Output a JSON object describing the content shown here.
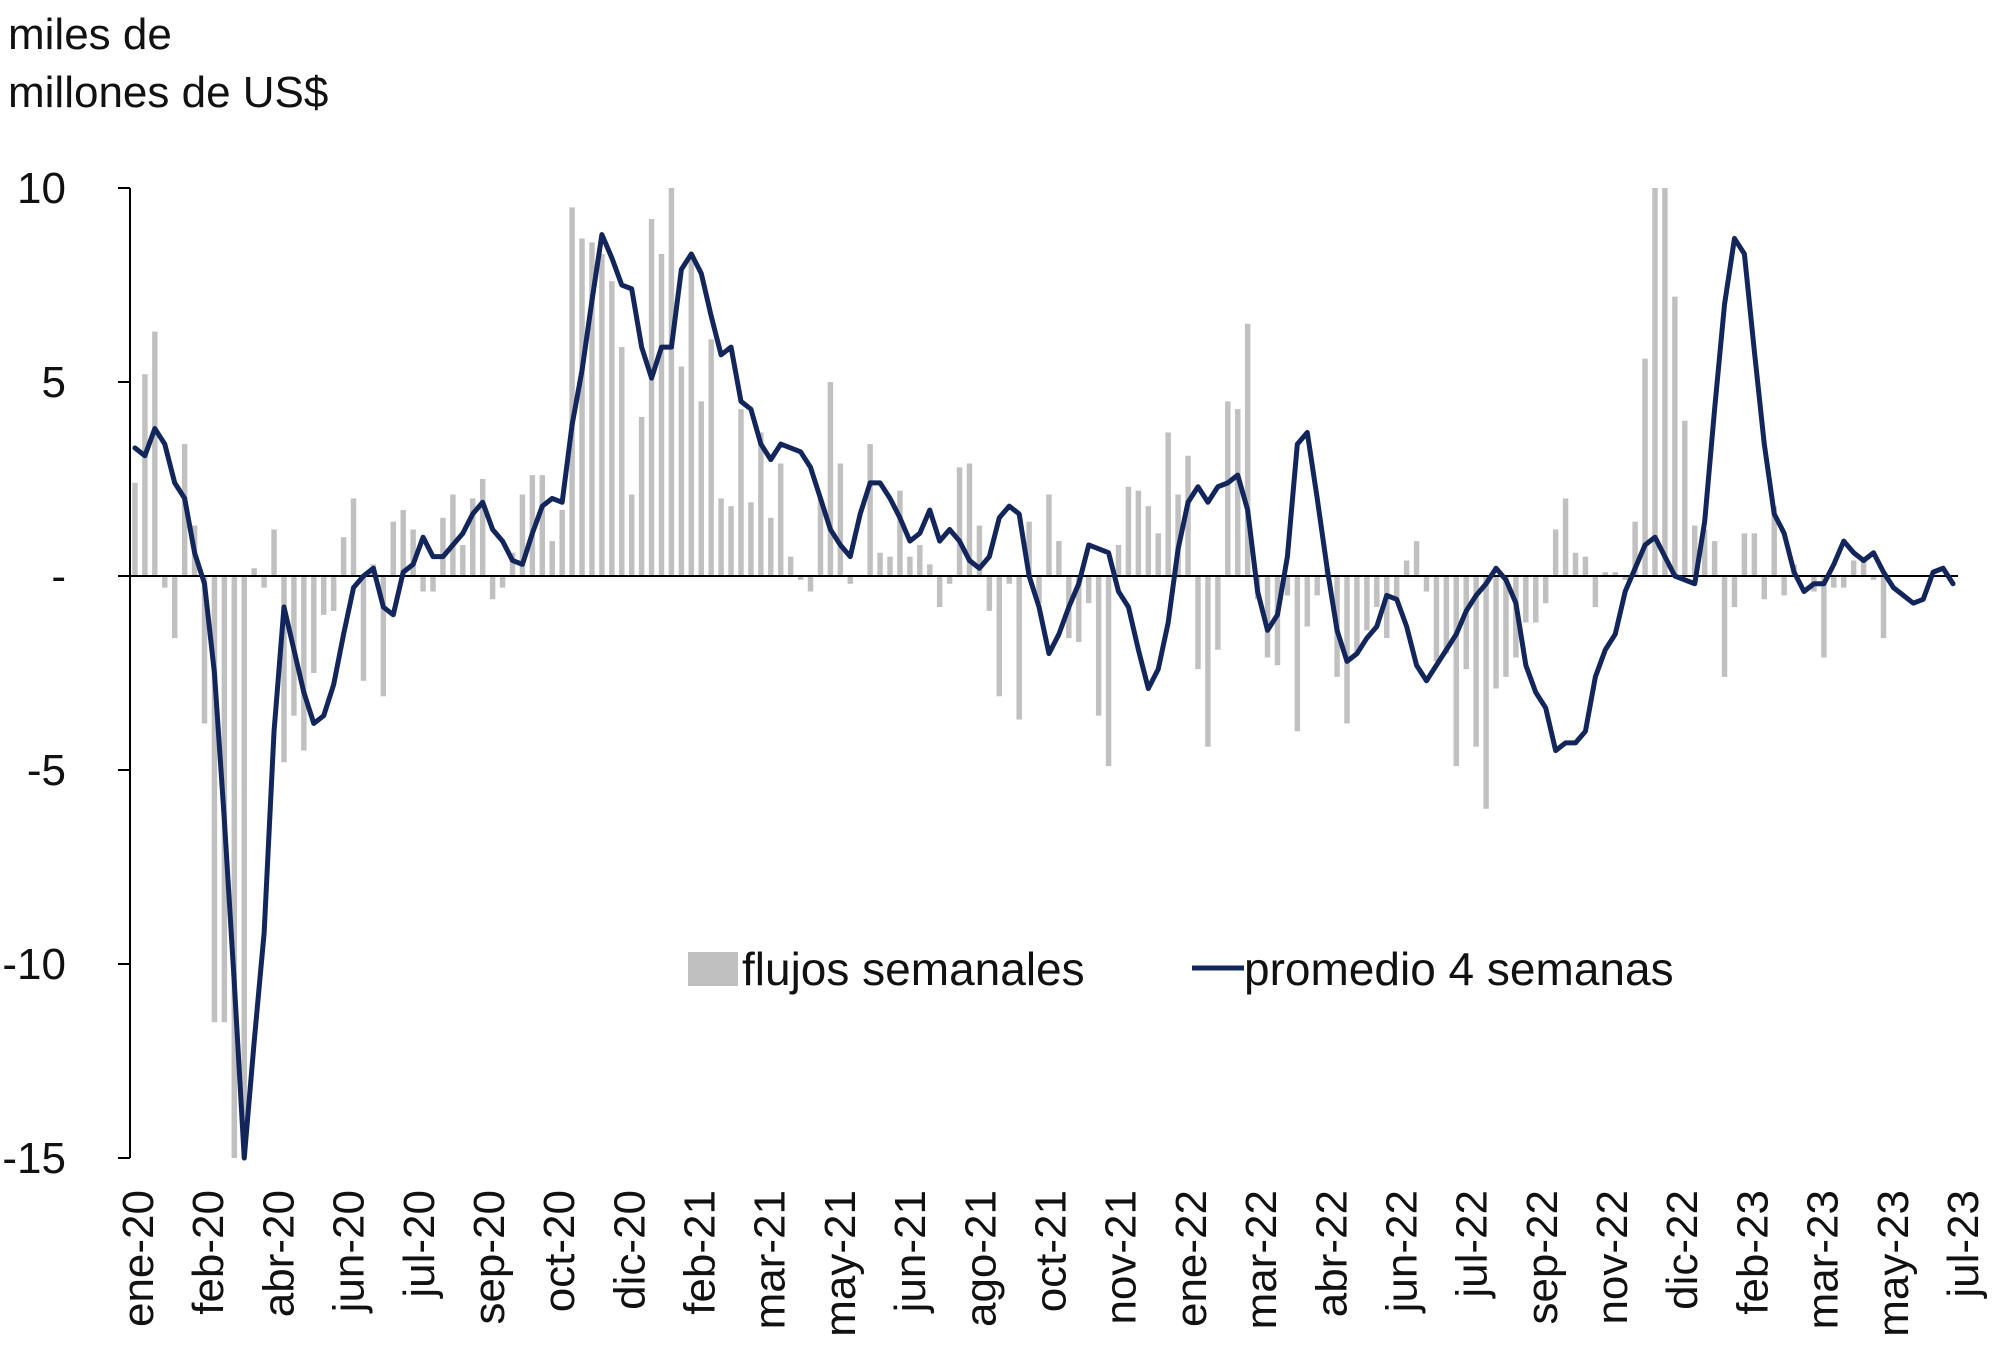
{
  "chart_data": {
    "type": "bar+line",
    "ylabel_line1": "miles de",
    "ylabel_line2": "millones de US$",
    "ylim": [
      -15,
      10
    ],
    "yticks": [
      10,
      5,
      0,
      -5,
      -10,
      -15
    ],
    "ytick_labels": [
      "10",
      "5",
      "-",
      "-5",
      "-10",
      "-15"
    ],
    "xtick_labels": [
      "ene-20",
      "feb-20",
      "abr-20",
      "jun-20",
      "jul-20",
      "sep-20",
      "oct-20",
      "dic-20",
      "feb-21",
      "mar-21",
      "may-21",
      "jun-21",
      "ago-21",
      "oct-21",
      "nov-21",
      "ene-22",
      "mar-22",
      "abr-22",
      "jun-22",
      "jul-22",
      "sep-22",
      "nov-22",
      "dic-22",
      "feb-23",
      "mar-23",
      "may-23",
      "jul-23"
    ],
    "legend_position": "center",
    "colors": {
      "bars": "#c0c0c0",
      "line": "#13265c",
      "axis": "#000000"
    },
    "series": [
      {
        "name": "flujos semanales",
        "type": "bar",
        "values": [
          2.4,
          5.2,
          6.3,
          -0.3,
          -1.6,
          3.4,
          1.3,
          -3.8,
          -11.5,
          -11.5,
          -15.0,
          -15.0,
          0.2,
          -0.3,
          1.2,
          -4.8,
          -3.6,
          -4.5,
          -2.5,
          -1.0,
          -0.9,
          1.0,
          2.0,
          -2.7,
          0.3,
          -3.1,
          1.4,
          1.7,
          1.2,
          -0.4,
          -0.4,
          1.5,
          2.1,
          0.8,
          2.0,
          2.5,
          -0.6,
          -0.3,
          0.6,
          2.1,
          2.6,
          2.6,
          0.9,
          1.7,
          9.5,
          8.7,
          8.6,
          8.3,
          7.6,
          5.9,
          2.1,
          4.1,
          9.2,
          8.3,
          10.0,
          5.4,
          8.3,
          4.5,
          6.1,
          2.0,
          1.8,
          4.3,
          1.9,
          3.7,
          1.5,
          2.9,
          0.5,
          -0.1,
          -0.4,
          2.0,
          5.0,
          2.9,
          -0.2,
          0.0,
          3.4,
          0.6,
          0.5,
          2.2,
          0.5,
          0.8,
          0.3,
          -0.8,
          -0.2,
          2.8,
          2.9,
          1.3,
          -0.9,
          -3.1,
          -0.2,
          -3.7,
          1.4,
          -0.7,
          2.1,
          0.9,
          -1.6,
          -1.7,
          -0.7,
          -3.6,
          -4.9,
          0.8,
          2.3,
          2.2,
          1.8,
          1.1,
          3.7,
          2.1,
          3.1,
          -2.4,
          -4.4,
          -1.9,
          4.5,
          4.3,
          6.5,
          -0.6,
          -2.1,
          -2.3,
          -0.5,
          -4.0,
          -1.3,
          -0.5,
          0.2,
          -2.6,
          -3.8,
          -2.0,
          -1.4,
          -0.8,
          -1.6,
          -0.6,
          0.4,
          0.9,
          -0.4,
          -2.2,
          -2.0,
          -4.9,
          -2.4,
          -4.4,
          -6.0,
          -2.9,
          -2.6,
          -2.1,
          -1.2,
          -1.2,
          -0.7,
          1.2,
          2.0,
          0.6,
          0.5,
          -0.8,
          0.1,
          0.1,
          -0.1,
          1.4,
          5.6,
          10.0,
          10.0,
          7.2,
          4.0,
          1.3,
          1.2,
          0.9,
          -2.6,
          -0.8,
          1.1,
          1.1,
          -0.6,
          1.8,
          -0.5,
          0.3,
          0.0,
          -0.4,
          -2.1,
          -0.3,
          -0.3,
          0.4,
          0.5,
          -0.1,
          -1.6
        ]
      },
      {
        "name": "promedio 4 semanas",
        "type": "line",
        "values": [
          3.3,
          3.1,
          3.8,
          3.4,
          2.4,
          2.0,
          0.6,
          -0.2,
          -2.5,
          -6.3,
          -10.5,
          -15.0,
          -12.0,
          -9.2,
          -4.0,
          -0.8,
          -1.9,
          -3.0,
          -3.8,
          -3.6,
          -2.8,
          -1.5,
          -0.3,
          0.0,
          0.2,
          -0.8,
          -1.0,
          0.1,
          0.3,
          1.0,
          0.5,
          0.5,
          0.8,
          1.1,
          1.6,
          1.9,
          1.2,
          0.9,
          0.4,
          0.3,
          1.1,
          1.8,
          2.0,
          1.9,
          3.9,
          5.3,
          7.1,
          8.8,
          8.2,
          7.5,
          7.4,
          5.9,
          5.1,
          5.9,
          5.9,
          7.9,
          8.3,
          7.8,
          6.7,
          5.7,
          5.9,
          4.5,
          4.3,
          3.4,
          3.0,
          3.4,
          3.3,
          3.2,
          2.8,
          2.0,
          1.2,
          0.8,
          0.5,
          1.6,
          2.4,
          2.4,
          2.0,
          1.5,
          0.9,
          1.1,
          1.7,
          0.9,
          1.2,
          0.9,
          0.4,
          0.2,
          0.5,
          1.5,
          1.8,
          1.6,
          0.0,
          -0.8,
          -2.0,
          -1.5,
          -0.8,
          -0.2,
          0.8,
          0.7,
          0.6,
          -0.4,
          -0.8,
          -1.9,
          -2.9,
          -2.4,
          -1.2,
          0.7,
          1.9,
          2.3,
          1.9,
          2.3,
          2.4,
          2.6,
          1.7,
          -0.4,
          -1.4,
          -1.0,
          0.5,
          3.4,
          3.7,
          2.0,
          0.2,
          -1.4,
          -2.2,
          -2.0,
          -1.6,
          -1.3,
          -0.5,
          -0.6,
          -1.3,
          -2.3,
          -2.7,
          -2.3,
          -1.9,
          -1.5,
          -0.9,
          -0.5,
          -0.2,
          0.2,
          -0.1,
          -0.7,
          -2.3,
          -3.0,
          -3.4,
          -4.5,
          -4.3,
          -4.3,
          -4.0,
          -2.6,
          -1.9,
          -1.5,
          -0.4,
          0.2,
          0.8,
          1.0,
          0.5,
          0.0,
          -0.1,
          -0.2,
          1.4,
          4.3,
          7.0,
          8.7,
          8.3,
          5.8,
          3.4,
          1.6,
          1.1,
          0.1,
          -0.4,
          -0.2,
          -0.2,
          0.3,
          0.9,
          0.6,
          0.4,
          0.6,
          0.1,
          -0.3,
          -0.5,
          -0.7,
          -0.6,
          0.1,
          0.2,
          -0.2
        ]
      }
    ]
  }
}
